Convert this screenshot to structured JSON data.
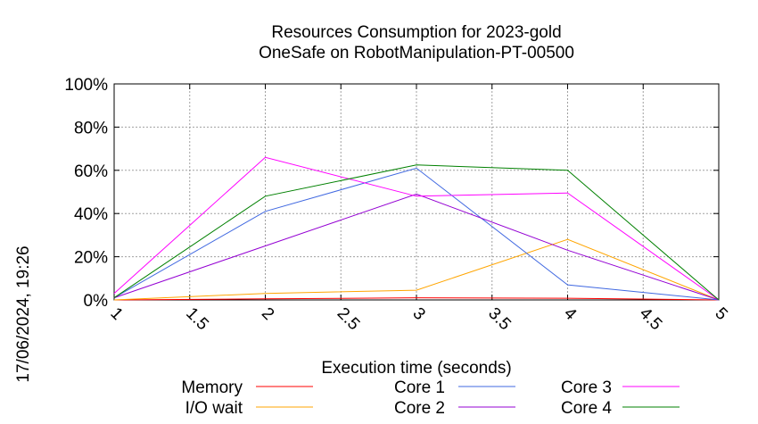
{
  "timestamp": "17/06/2024, 19:26",
  "chart_data": {
    "type": "line",
    "title": "Resources Consumption for 2023-gold",
    "subtitle": "OneSafe on RobotManipulation-PT-00500",
    "xlabel": "Execution time (seconds)",
    "ylabel": "",
    "xlim": [
      1,
      5
    ],
    "ylim": [
      0,
      100
    ],
    "x_ticks": [
      "1",
      "1.5",
      "2",
      "2.5",
      "3",
      "3.5",
      "4",
      "4.5",
      "5"
    ],
    "y_ticks": [
      "0%",
      "20%",
      "40%",
      "60%",
      "80%",
      "100%"
    ],
    "grid": true,
    "legend_position": "bottom",
    "x": [
      1,
      2,
      3,
      4,
      5
    ],
    "series": [
      {
        "name": "Memory",
        "color": "#ff0000",
        "values": [
          0,
          0.5,
          1,
          0.8,
          0
        ]
      },
      {
        "name": "I/O wait",
        "color": "#ffa500",
        "values": [
          0,
          3,
          4.5,
          28,
          0
        ]
      },
      {
        "name": "Core 1",
        "color": "#4169e1",
        "values": [
          1,
          41,
          61,
          7,
          0
        ]
      },
      {
        "name": "Core 2",
        "color": "#9400d3",
        "values": [
          1,
          25,
          49,
          23,
          0
        ]
      },
      {
        "name": "Core 3",
        "color": "#ff00ff",
        "values": [
          3,
          66,
          48,
          49.5,
          0
        ]
      },
      {
        "name": "Core 4",
        "color": "#008000",
        "values": [
          1,
          48,
          62.5,
          60,
          0
        ]
      }
    ]
  }
}
